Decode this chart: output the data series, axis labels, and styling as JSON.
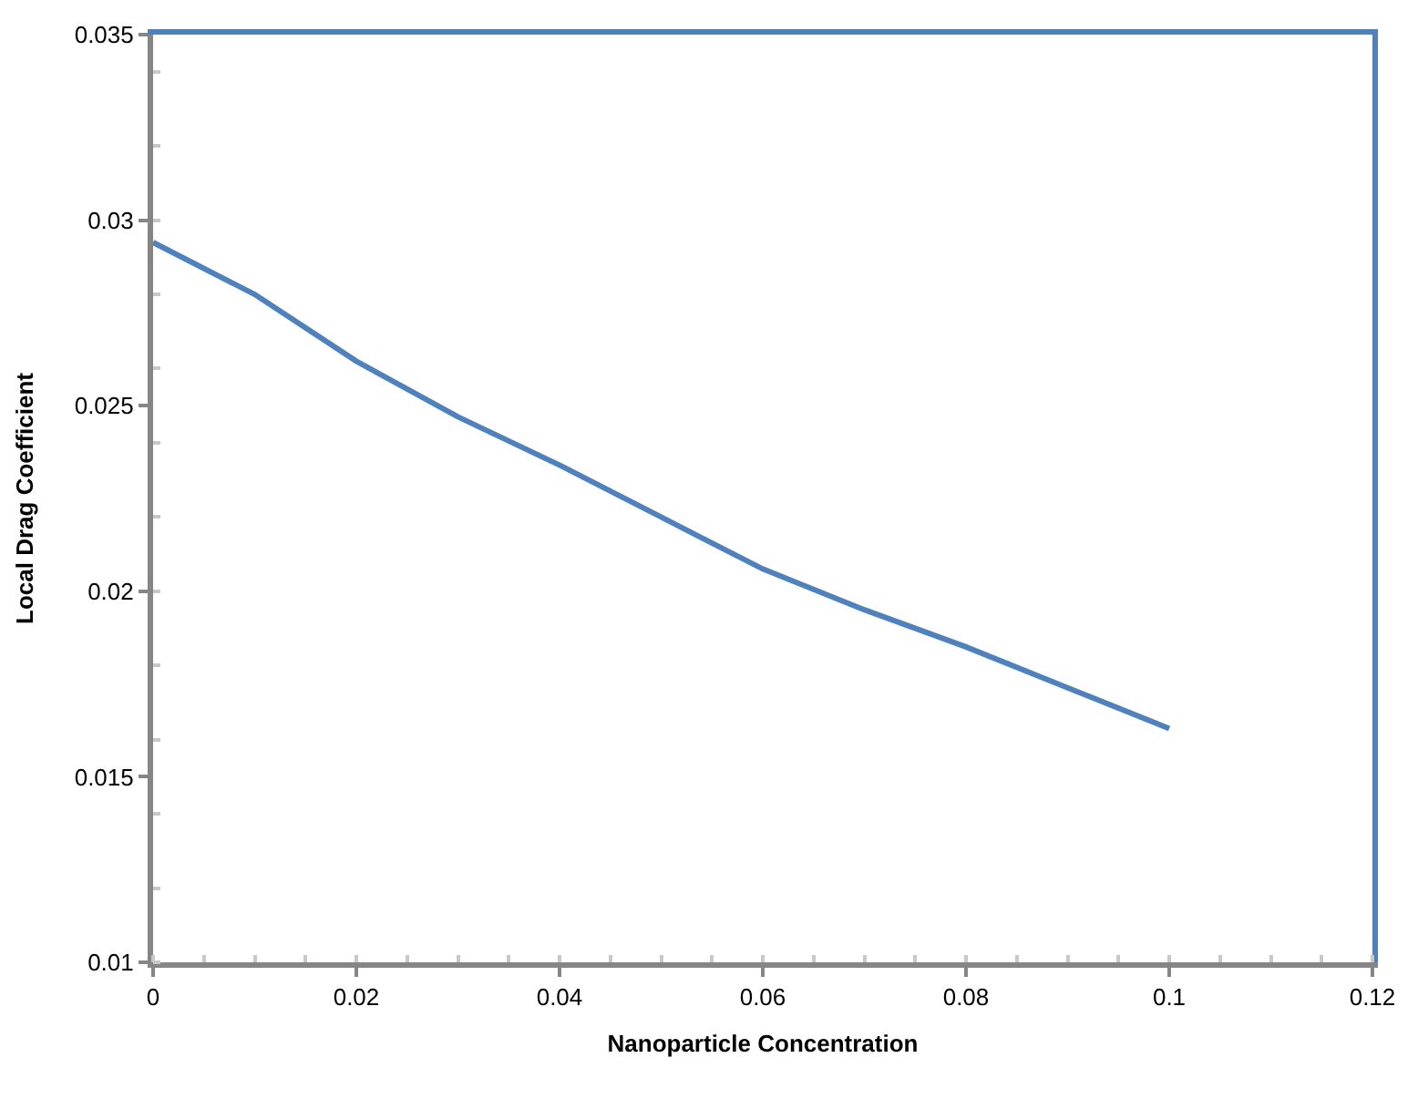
{
  "chart_data": {
    "type": "line",
    "xlabel": "Nanoparticle Concentration",
    "ylabel": "Local Drag Coefficient",
    "x": [
      0,
      0.01,
      0.02,
      0.03,
      0.04,
      0.05,
      0.06,
      0.07,
      0.08,
      0.09,
      0.1
    ],
    "series": [
      {
        "color": "#4f81bd",
        "values": [
          0.0294,
          0.028,
          0.0262,
          0.0247,
          0.0234,
          0.022,
          0.0206,
          0.0195,
          0.0185,
          0.0174,
          0.0163
        ]
      }
    ],
    "xlim": [
      0,
      0.12
    ],
    "xticks": [
      0,
      0.02,
      0.04,
      0.06,
      0.08,
      0.1,
      0.12
    ],
    "ylim": [
      0.01,
      0.035
    ],
    "yticks": [
      0.01,
      0.015,
      0.02,
      0.025,
      0.03,
      0.035
    ],
    "marker": "none",
    "line_style": "solid"
  }
}
